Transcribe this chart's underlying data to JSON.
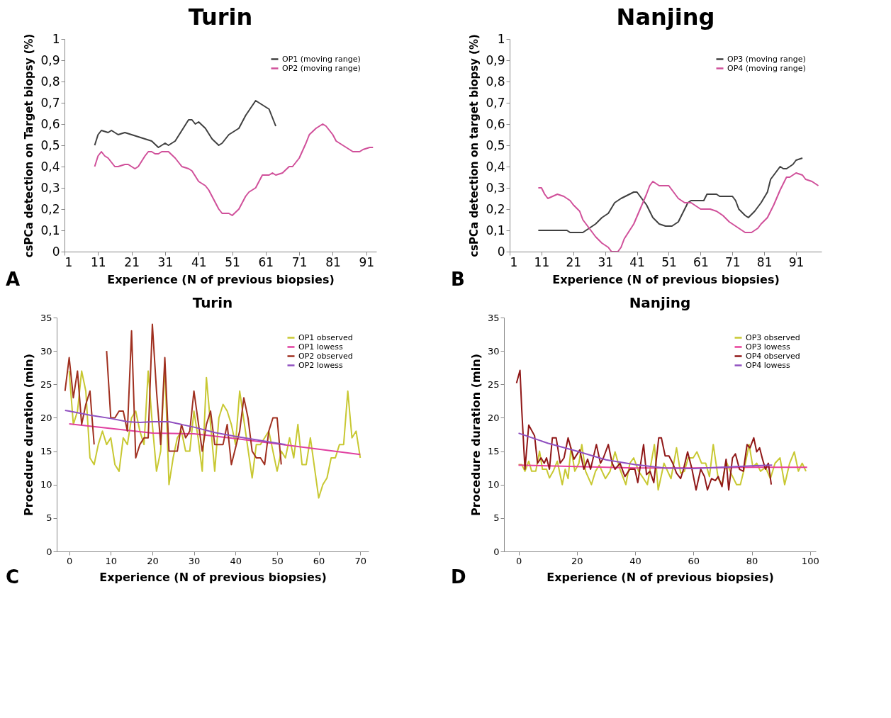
{
  "chart_data": [
    {
      "type": "line",
      "title": "Turin",
      "xlabel": "Experience (N of previous biopsies)",
      "ylabel": "csPCa detection on Target biopsy (%)",
      "annotations": [
        "A"
      ],
      "legend": "top right",
      "xlim": [
        1,
        94
      ],
      "xticks": [
        1,
        11,
        21,
        31,
        41,
        51,
        61,
        71,
        81,
        91
      ],
      "ylim": [
        0,
        1
      ],
      "yticks": [
        0,
        {
          "value": 0.1,
          "label": "0,1"
        },
        {
          "value": 0.2,
          "label": "0,2"
        },
        {
          "value": 0.3,
          "label": "0,3"
        },
        {
          "value": 0.4,
          "label": "0,4"
        },
        {
          "value": 0.5,
          "label": "0,5"
        },
        {
          "value": 0.6,
          "label": "0,6"
        },
        {
          "value": 0.7,
          "label": "0,7"
        },
        {
          "value": 0.8,
          "label": "0,8"
        },
        {
          "value": 0.9,
          "label": "0,9"
        },
        1
      ],
      "series": [
        {
          "name": "OP1 (moving range)",
          "color": "#404040",
          "x": [
            10,
            11,
            12,
            14,
            15,
            17,
            19,
            21,
            23,
            25,
            27,
            29,
            31,
            32,
            34,
            36,
            38,
            39,
            40,
            41,
            43,
            45,
            47,
            48,
            50,
            52,
            53,
            55,
            58,
            60,
            62,
            64
          ],
          "values": [
            0.5,
            0.55,
            0.57,
            0.56,
            0.57,
            0.55,
            0.56,
            0.55,
            0.54,
            0.53,
            0.52,
            0.49,
            0.51,
            0.5,
            0.52,
            0.57,
            0.62,
            0.62,
            0.6,
            0.61,
            0.58,
            0.53,
            0.5,
            0.51,
            0.55,
            0.57,
            0.58,
            0.64,
            0.71,
            0.69,
            0.67,
            0.59
          ]
        },
        {
          "name": "OP2 (moving range)",
          "color": "#d0509a",
          "x": [
            10,
            11,
            12,
            13,
            14,
            16,
            17,
            19,
            20,
            22,
            23,
            25,
            26,
            27,
            28,
            29,
            30,
            32,
            34,
            36,
            38,
            39,
            41,
            43,
            44,
            46,
            47,
            48,
            50,
            51,
            53,
            55,
            56,
            58,
            60,
            62,
            63,
            64,
            66,
            68,
            69,
            71,
            73,
            74,
            76,
            78,
            79,
            81,
            82,
            84,
            86,
            87,
            89,
            90,
            92,
            93
          ],
          "values": [
            0.4,
            0.45,
            0.47,
            0.45,
            0.44,
            0.4,
            0.4,
            0.41,
            0.41,
            0.39,
            0.4,
            0.45,
            0.47,
            0.47,
            0.46,
            0.46,
            0.47,
            0.47,
            0.44,
            0.4,
            0.39,
            0.38,
            0.33,
            0.31,
            0.29,
            0.23,
            0.2,
            0.18,
            0.18,
            0.17,
            0.2,
            0.26,
            0.28,
            0.3,
            0.36,
            0.36,
            0.37,
            0.36,
            0.37,
            0.4,
            0.4,
            0.44,
            0.51,
            0.55,
            0.58,
            0.6,
            0.59,
            0.55,
            0.52,
            0.5,
            0.48,
            0.47,
            0.47,
            0.48,
            0.49,
            0.49
          ]
        }
      ]
    },
    {
      "type": "line",
      "title": "Nanjing",
      "xlabel": "Experience (N of previous biopsies)",
      "ylabel": "csPCa detection on target biopsy (%)",
      "annotations": [
        "B"
      ],
      "legend": "top right",
      "xlim": [
        1,
        99
      ],
      "xticks": [
        1,
        11,
        21,
        31,
        41,
        51,
        61,
        71,
        81,
        91
      ],
      "ylim": [
        0,
        1
      ],
      "yticks": [
        0,
        {
          "value": 0.1,
          "label": "0,1"
        },
        {
          "value": 0.2,
          "label": "0,2"
        },
        {
          "value": 0.3,
          "label": "0,3"
        },
        {
          "value": 0.4,
          "label": "0,4"
        },
        {
          "value": 0.5,
          "label": "0,5"
        },
        {
          "value": 0.6,
          "label": "0,6"
        },
        {
          "value": 0.7,
          "label": "0,7"
        },
        {
          "value": 0.8,
          "label": "0,8"
        },
        {
          "value": 0.9,
          "label": "0,9"
        },
        1
      ],
      "series": [
        {
          "name": "OP3 (moving range)",
          "color": "#404040",
          "x": [
            10,
            19,
            20,
            24,
            26,
            28,
            30,
            32,
            34,
            36,
            40,
            41,
            44,
            46,
            48,
            50,
            52,
            54,
            57,
            58,
            61,
            62,
            63,
            66,
            67,
            71,
            72,
            73,
            75,
            76,
            78,
            80,
            82,
            83,
            84,
            86,
            87,
            88,
            90,
            91,
            93
          ],
          "values": [
            0.1,
            0.1,
            0.09,
            0.09,
            0.11,
            0.13,
            0.16,
            0.18,
            0.23,
            0.25,
            0.28,
            0.28,
            0.22,
            0.16,
            0.13,
            0.12,
            0.12,
            0.14,
            0.23,
            0.24,
            0.24,
            0.24,
            0.27,
            0.27,
            0.26,
            0.26,
            0.24,
            0.2,
            0.17,
            0.16,
            0.19,
            0.23,
            0.28,
            0.34,
            0.36,
            0.4,
            0.39,
            0.39,
            0.41,
            0.43,
            0.44
          ]
        },
        {
          "name": "OP4 (moving range)",
          "color": "#d0509a",
          "x": [
            10,
            11,
            12,
            13,
            16,
            18,
            20,
            21,
            23,
            24,
            26,
            28,
            30,
            32,
            33,
            35,
            36,
            37,
            40,
            42,
            44,
            45,
            46,
            48,
            50,
            51,
            53,
            54,
            56,
            58,
            61,
            64,
            66,
            68,
            70,
            73,
            75,
            77,
            79,
            80,
            82,
            84,
            86,
            88,
            89,
            91,
            93,
            94,
            96,
            98
          ],
          "values": [
            0.3,
            0.3,
            0.27,
            0.25,
            0.27,
            0.26,
            0.24,
            0.22,
            0.19,
            0.15,
            0.11,
            0.07,
            0.04,
            0.02,
            0.0,
            0.0,
            0.02,
            0.06,
            0.13,
            0.2,
            0.27,
            0.31,
            0.33,
            0.31,
            0.31,
            0.31,
            0.27,
            0.25,
            0.23,
            0.23,
            0.2,
            0.2,
            0.19,
            0.17,
            0.14,
            0.11,
            0.09,
            0.09,
            0.11,
            0.13,
            0.16,
            0.22,
            0.29,
            0.35,
            0.35,
            0.37,
            0.36,
            0.34,
            0.33,
            0.31
          ]
        }
      ]
    },
    {
      "type": "line",
      "title": "Turin",
      "xlabel": "Experience (N of previous biopsies)",
      "ylabel": "Procedure duration (min)",
      "annotations": [
        "C"
      ],
      "legend": "top right",
      "xlim": [
        -3,
        72
      ],
      "xticks": [
        0,
        10,
        20,
        30,
        40,
        50,
        60,
        70
      ],
      "ylim": [
        0,
        35
      ],
      "yticks": [
        0,
        5,
        10,
        15,
        20,
        25,
        30,
        35
      ],
      "series": [
        {
          "name": "OP1 observed",
          "color": "#c8c832",
          "x": [
            0,
            1,
            2,
            3,
            4,
            5,
            6,
            7,
            8,
            9,
            10,
            11,
            12,
            13,
            14,
            15,
            16,
            17,
            18,
            19,
            20,
            21,
            22,
            23,
            24,
            25,
            26,
            27,
            28,
            29,
            30,
            31,
            32,
            33,
            35,
            36,
            37,
            38,
            39,
            40,
            41,
            44,
            45,
            46,
            47,
            48,
            50,
            51,
            52,
            53,
            54,
            55,
            56,
            57,
            58,
            60,
            61,
            62,
            63,
            64,
            65,
            66,
            67,
            68,
            69,
            70
          ],
          "values": [
            27,
            19,
            21,
            27,
            24,
            14,
            13,
            16,
            18,
            16,
            17,
            13,
            12,
            17,
            16,
            20,
            21,
            18,
            16,
            27,
            19,
            12,
            15,
            28,
            10,
            14,
            17,
            18,
            15,
            15,
            21,
            17,
            12,
            26,
            12,
            20,
            22,
            21,
            19,
            16,
            24,
            11,
            16,
            16,
            17,
            18,
            12,
            15,
            14,
            17,
            14,
            19,
            13,
            13,
            17,
            8,
            10,
            11,
            14,
            14,
            16,
            16,
            24,
            17,
            18,
            14
          ]
        },
        {
          "name": "OP1 lowess",
          "color": "#e040a0",
          "x": [
            0,
            10,
            20,
            30,
            40,
            50,
            60,
            70
          ],
          "values": [
            19.1,
            18.4,
            17.7,
            17.6,
            16.9,
            16.1,
            15.3,
            14.5
          ]
        },
        {
          "name": "OP2 observed",
          "color": "#a03020",
          "x": [
            -1,
            0,
            1,
            2,
            3,
            4,
            5,
            6,
            7,
            9,
            10,
            11,
            12,
            13,
            14,
            15,
            16,
            17,
            18,
            19,
            20,
            21,
            22,
            23,
            24,
            25,
            26,
            27,
            28,
            29,
            30,
            32,
            33,
            34,
            35,
            37,
            38,
            39,
            41,
            42,
            43,
            44,
            45,
            46,
            47,
            48,
            49,
            50,
            51
          ],
          "values": [
            24,
            29,
            23,
            27,
            19,
            22,
            24,
            16,
            null,
            30,
            20,
            20,
            21,
            21,
            18,
            33,
            14,
            16,
            17,
            17,
            34,
            24,
            16,
            29,
            15,
            15,
            15,
            19,
            17,
            18,
            24,
            15,
            19,
            21,
            16,
            16,
            19,
            13,
            18,
            23,
            20,
            15,
            14,
            14,
            13,
            18,
            20,
            20,
            13
          ]
        },
        {
          "name": "OP2 lowess",
          "color": "#9050c0",
          "x": [
            -1,
            0,
            5,
            10,
            14,
            17,
            20,
            24,
            27,
            30,
            35,
            40,
            45,
            52
          ],
          "values": [
            21.1,
            21,
            20.4,
            19.9,
            19.4,
            19.3,
            19.4,
            19.4,
            19,
            18.6,
            17.8,
            17.2,
            16.7,
            16
          ]
        }
      ]
    },
    {
      "type": "line",
      "title": "Nanjing",
      "xlabel": "Experience (N of previous biopsies)",
      "ylabel": "Procedure duration (min)",
      "annotations": [
        "D"
      ],
      "legend": "top right",
      "xlim": [
        -5,
        102
      ],
      "xticks": [
        0,
        20,
        40,
        60,
        80,
        100
      ],
      "ylim": [
        0,
        35
      ],
      "yticks": [
        0,
        5,
        10,
        15,
        20,
        25,
        30,
        35
      ],
      "series": [
        {
          "name": "OP3 observed",
          "color": "#c8c832",
          "x": [
            0,
            1.1,
            2.2,
            3.5,
            4.5,
            5.9,
            7.2,
            8.2,
            9.6,
            10.6,
            11.9,
            13.3,
            15,
            16,
            17,
            18,
            19.3,
            20.7,
            21.7,
            23,
            25,
            26.4,
            27.7,
            29.8,
            31.4,
            33.1,
            34.8,
            36.8,
            38.2,
            39.5,
            41.2,
            42.9,
            44.2,
            46.6,
            47.9,
            49.9,
            52.3,
            54.2,
            55.6,
            56.9,
            58.2,
            59.9,
            61.2,
            62.8,
            64.2,
            65.5,
            66.8,
            68.5,
            69.8,
            71.2,
            73.1,
            74.8,
            76.1,
            77.4,
            79.1,
            80.4,
            81.7,
            83,
            84.7,
            86.4,
            88,
            89.7,
            91.3,
            93,
            94.6,
            96,
            97.3,
            98.6
          ],
          "values": [
            13,
            13,
            12,
            13.5,
            12,
            12,
            15,
            12.3,
            12.3,
            11,
            12,
            13.5,
            10,
            12.3,
            10.9,
            15.5,
            12,
            13.2,
            16,
            12,
            10,
            12,
            12.9,
            10.9,
            12,
            14.9,
            12.3,
            10,
            13.2,
            14,
            12,
            10.9,
            10,
            16,
            9.2,
            13.2,
            10.9,
            15.5,
            11.7,
            12,
            14,
            14,
            14.9,
            13.2,
            13.2,
            11.2,
            16,
            10.9,
            10,
            13.5,
            11.5,
            10,
            10,
            12.3,
            16,
            12.6,
            13.2,
            12,
            12.6,
            10.9,
            13.2,
            14,
            10,
            13.2,
            14.9,
            12,
            13.2,
            12
          ]
        },
        {
          "name": "OP3 lowess",
          "color": "#e8409a",
          "x": [
            0,
            20,
            40,
            60,
            80,
            99
          ],
          "values": [
            12.9,
            12.7,
            12.5,
            12.5,
            12.6,
            12.6
          ]
        },
        {
          "name": "OP4 observed",
          "color": "#901818",
          "x": [
            -0.7,
            0.5,
            1.1,
            2.2,
            3.5,
            5.5,
            6.5,
            7.7,
            8.8,
            9.6,
            10.6,
            11.6,
            12.9,
            14.3,
            15.6,
            17,
            19,
            21,
            22.4,
            23.7,
            24.7,
            26.7,
            28.1,
            29.1,
            30.8,
            32.1,
            33.1,
            34.8,
            36.5,
            38.2,
            39.9,
            40.9,
            42.9,
            43.9,
            45.1,
            46.4,
            48.1,
            49,
            50.3,
            51.6,
            52.9,
            54.2,
            55.6,
            56.6,
            58,
            59.5,
            60.9,
            62.5,
            63.8,
            64.8,
            66.2,
            67.5,
            68.5,
            69.8,
            71.2,
            72.1,
            73.4,
            74.4,
            75.8,
            77.1,
            78.4,
            79.4,
            80.7,
            81.7,
            82.7,
            83.7,
            84.7,
            85.7,
            86.7
          ],
          "values": [
            25.2,
            27.1,
            21.2,
            12.3,
            18.9,
            17.3,
            13.2,
            14,
            13.2,
            14,
            12.3,
            17,
            17,
            13.2,
            14,
            17,
            13.8,
            15.2,
            12.3,
            13.8,
            12.3,
            16,
            13.2,
            14,
            16,
            13.2,
            12.3,
            13.2,
            11.2,
            12.3,
            12.3,
            10.3,
            16,
            11.5,
            12,
            10.3,
            17,
            17,
            14.3,
            14.3,
            13.2,
            11.7,
            10.9,
            12.3,
            14.9,
            12.3,
            9.2,
            12.3,
            11.2,
            9.2,
            10.9,
            10.6,
            11.2,
            9.7,
            13.8,
            9.2,
            14,
            14.6,
            12.3,
            12,
            16,
            15.5,
            17,
            14.9,
            15.5,
            13.8,
            12.3,
            13.2,
            10
          ]
        },
        {
          "name": "OP4 lowess",
          "color": "#9050c0",
          "x": [
            0,
            10,
            20,
            30,
            40,
            50,
            60,
            70,
            80,
            87
          ],
          "values": [
            17.7,
            16.2,
            15,
            13.7,
            13,
            12.5,
            12.4,
            12.6,
            12.8,
            12.9
          ]
        }
      ]
    }
  ]
}
